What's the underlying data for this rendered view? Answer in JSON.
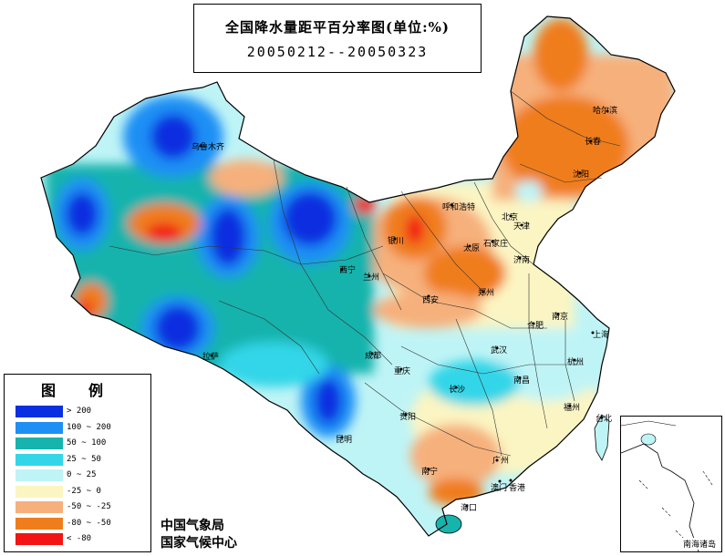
{
  "title": "全国降水量距平百分率图(单位:%)",
  "date_range": "20050212--20050323",
  "legend": {
    "title_chars": [
      "图",
      "例"
    ],
    "items": [
      {
        "label": "> 200",
        "color": "#0a2fe0"
      },
      {
        "label": "100 ~ 200",
        "color": "#1f8ff5"
      },
      {
        "label": "50 ~ 100",
        "color": "#17b3ad"
      },
      {
        "label": "25 ~ 50",
        "color": "#33d6e8"
      },
      {
        "label": "0 ~ 25",
        "color": "#bff4f6"
      },
      {
        "label": "-25 ~ 0",
        "color": "#fbf5c3"
      },
      {
        "label": "-50 ~ -25",
        "color": "#f6b07c"
      },
      {
        "label": "-80 ~ -50",
        "color": "#f07d1c"
      },
      {
        "label": "< -80",
        "color": "#f31414"
      }
    ]
  },
  "agency": [
    "中国气象局",
    "国家气候中心"
  ],
  "inset_label": "南海诸岛",
  "cities": [
    {
      "name": "乌鲁木齐",
      "id": "urumqi"
    },
    {
      "name": "哈尔滨",
      "id": "harbin"
    },
    {
      "name": "长春",
      "id": "changchun"
    },
    {
      "name": "沈阳",
      "id": "shenyang"
    },
    {
      "name": "呼和浩特",
      "id": "hohhot"
    },
    {
      "name": "北京",
      "id": "beijing"
    },
    {
      "name": "天津",
      "id": "tianjin"
    },
    {
      "name": "银川",
      "id": "yinchuan"
    },
    {
      "name": "太原",
      "id": "taiyuan"
    },
    {
      "name": "石家庄",
      "id": "shijiazhuang"
    },
    {
      "name": "济南",
      "id": "jinan"
    },
    {
      "name": "西宁",
      "id": "xining"
    },
    {
      "name": "兰州",
      "id": "lanzhou"
    },
    {
      "name": "郑州",
      "id": "zhengzhou"
    },
    {
      "name": "西安",
      "id": "xian"
    },
    {
      "name": "合肥",
      "id": "hefei"
    },
    {
      "name": "南京",
      "id": "nanjing"
    },
    {
      "name": "上海",
      "id": "shanghai"
    },
    {
      "name": "拉萨",
      "id": "lhasa"
    },
    {
      "name": "成都",
      "id": "chengdu"
    },
    {
      "name": "武汉",
      "id": "wuhan"
    },
    {
      "name": "重庆",
      "id": "chongqing"
    },
    {
      "name": "杭州",
      "id": "hangzhou"
    },
    {
      "name": "长沙",
      "id": "changsha"
    },
    {
      "name": "南昌",
      "id": "nanchang"
    },
    {
      "name": "福州",
      "id": "fuzhou"
    },
    {
      "name": "贵阳",
      "id": "guiyang"
    },
    {
      "name": "昆明",
      "id": "kunming"
    },
    {
      "name": "台北",
      "id": "taipei"
    },
    {
      "name": "南宁",
      "id": "nanning"
    },
    {
      "name": "广州",
      "id": "guangzhou"
    },
    {
      "name": "澳门",
      "id": "macau"
    },
    {
      "name": "香港",
      "id": "hongkong"
    },
    {
      "name": "海口",
      "id": "haikou"
    }
  ]
}
